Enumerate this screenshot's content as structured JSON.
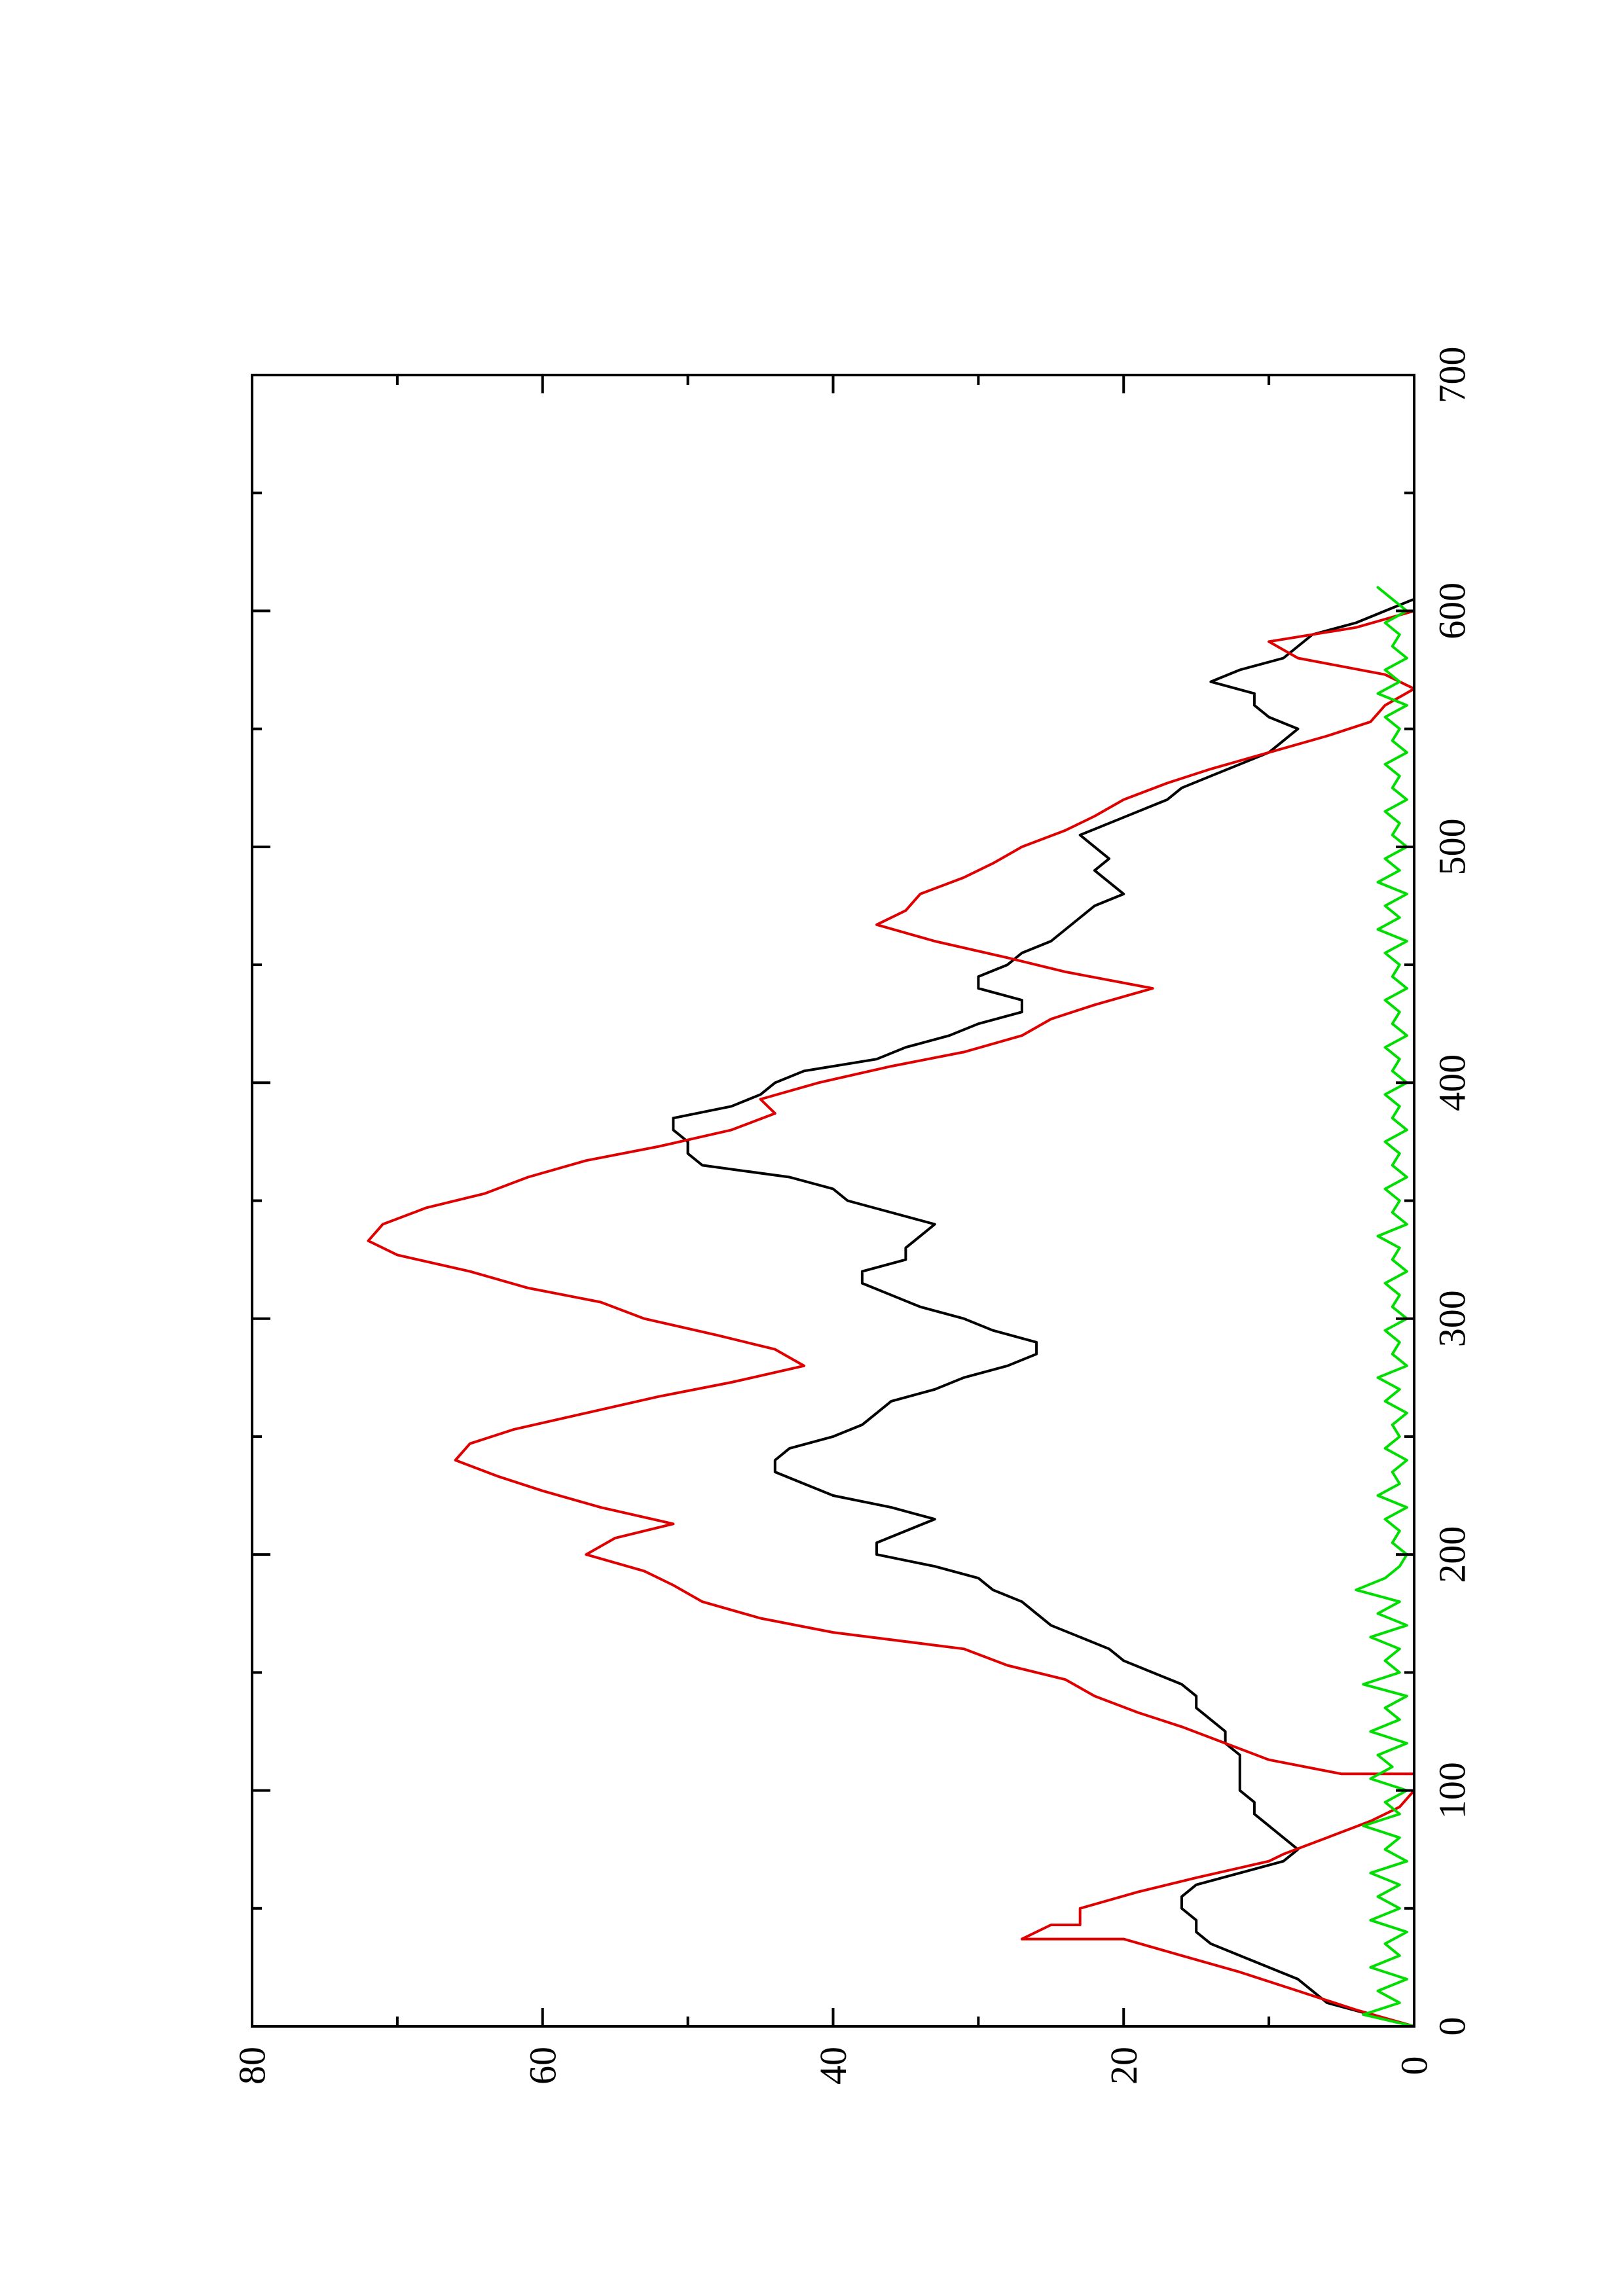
{
  "chart_data": {
    "type": "line",
    "title": "",
    "xlabel": "",
    "ylabel": "",
    "orientation": "rotated-90-counterclockwise",
    "xlim": [
      0,
      700
    ],
    "ylim": [
      0,
      80
    ],
    "x_ticks": [
      "0",
      "100",
      "200",
      "300",
      "400",
      "500",
      "600",
      "700"
    ],
    "y_ticks": [
      "0",
      "20",
      "40",
      "60",
      "80"
    ],
    "grid": false,
    "legend": "none",
    "series": [
      {
        "color": "#000000",
        "x": [
          0,
          5,
          10,
          15,
          20,
          25,
          30,
          35,
          40,
          45,
          50,
          55,
          60,
          65,
          70,
          75,
          80,
          85,
          90,
          95,
          100,
          105,
          110,
          115,
          120,
          125,
          130,
          135,
          140,
          145,
          150,
          155,
          160,
          165,
          170,
          175,
          180,
          185,
          190,
          195,
          200,
          205,
          210,
          215,
          220,
          225,
          230,
          235,
          240,
          245,
          250,
          255,
          260,
          265,
          270,
          275,
          280,
          285,
          290,
          295,
          300,
          305,
          310,
          315,
          320,
          325,
          330,
          335,
          340,
          345,
          350,
          355,
          360,
          365,
          370,
          375,
          380,
          385,
          390,
          395,
          400,
          405,
          410,
          415,
          420,
          425,
          430,
          435,
          440,
          445,
          450,
          455,
          460,
          465,
          470,
          475,
          480,
          485,
          490,
          495,
          500,
          505,
          510,
          515,
          520,
          525,
          530,
          535,
          540,
          545,
          550,
          555,
          560,
          565,
          570,
          575,
          580,
          585,
          590,
          595,
          600,
          605,
          610
        ],
        "values": [
          0,
          3,
          6,
          7,
          8,
          10,
          12,
          14,
          15,
          15,
          16,
          16,
          15,
          12,
          9,
          8,
          9,
          10,
          11,
          11,
          12,
          12,
          12,
          12,
          13,
          13,
          14,
          15,
          15,
          16,
          18,
          20,
          21,
          23,
          25,
          26,
          27,
          29,
          30,
          33,
          37,
          37,
          35,
          33,
          36,
          40,
          42,
          44,
          44,
          43,
          40,
          38,
          37,
          36,
          33,
          31,
          28,
          26,
          26,
          29,
          31,
          34,
          36,
          38,
          38,
          35,
          35,
          34,
          33,
          36,
          39,
          40,
          43,
          49,
          50,
          50,
          51,
          51,
          47,
          45,
          44,
          42,
          37,
          35,
          32,
          30,
          27,
          27,
          30,
          30,
          28,
          27,
          25,
          24,
          23,
          22,
          20,
          21,
          22,
          21,
          22,
          23,
          21,
          19,
          17,
          16,
          14,
          12,
          10,
          9,
          8,
          10,
          11,
          11,
          14,
          12,
          9,
          8,
          7,
          4,
          2,
          0,
          0
        ]
      },
      {
        "color": "#e00000",
        "x": [
          0,
          7,
          15,
          23,
          30,
          37,
          37,
          43,
          43,
          50,
          57,
          63,
          70,
          73,
          80,
          87,
          93,
          100,
          107,
          107,
          113,
          120,
          127,
          133,
          140,
          147,
          153,
          160,
          167,
          173,
          180,
          187,
          193,
          200,
          207,
          213,
          220,
          227,
          233,
          240,
          247,
          253,
          260,
          267,
          273,
          280,
          287,
          293,
          300,
          307,
          313,
          320,
          327,
          333,
          340,
          347,
          353,
          360,
          367,
          373,
          380,
          387,
          393,
          400,
          407,
          413,
          420,
          427,
          433,
          440,
          447,
          453,
          460,
          467,
          473,
          480,
          487,
          493,
          500,
          507,
          513,
          520,
          527,
          533,
          540,
          547,
          553,
          560,
          567,
          573,
          580,
          587,
          593,
          600,
          607
        ],
        "values": [
          0,
          4,
          8,
          12,
          16,
          20,
          27,
          25,
          23,
          23,
          19,
          15,
          10,
          9,
          6,
          3,
          1,
          0,
          0,
          5,
          10,
          13,
          16,
          19,
          22,
          24,
          28,
          31,
          40,
          45,
          49,
          51,
          53,
          57,
          55,
          51,
          56,
          60,
          63,
          66,
          65,
          62,
          57,
          52,
          47,
          42,
          44,
          48,
          53,
          56,
          61,
          65,
          70,
          72,
          71,
          68,
          64,
          61,
          57,
          52,
          47,
          44,
          45,
          41,
          36,
          31,
          27,
          25,
          22,
          18,
          24,
          28,
          33,
          37,
          35,
          34,
          31,
          29,
          27,
          24,
          22,
          20,
          17,
          14,
          10,
          6,
          3,
          2,
          0,
          2,
          8,
          10,
          4,
          0,
          0
        ]
      },
      {
        "color": "#00dd00",
        "x": [
          0,
          5,
          10,
          15,
          20,
          25,
          30,
          35,
          40,
          45,
          50,
          55,
          60,
          65,
          70,
          75,
          80,
          85,
          90,
          95,
          100,
          105,
          110,
          115,
          120,
          125,
          130,
          135,
          140,
          145,
          150,
          155,
          160,
          165,
          170,
          175,
          180,
          185,
          190,
          195,
          200,
          205,
          210,
          215,
          220,
          225,
          230,
          235,
          240,
          245,
          250,
          255,
          260,
          265,
          270,
          275,
          280,
          285,
          290,
          295,
          300,
          305,
          310,
          315,
          320,
          325,
          330,
          335,
          340,
          345,
          350,
          355,
          360,
          365,
          370,
          375,
          380,
          385,
          390,
          395,
          400,
          405,
          410,
          415,
          420,
          425,
          430,
          435,
          440,
          445,
          450,
          455,
          460,
          465,
          470,
          475,
          480,
          485,
          490,
          495,
          500,
          505,
          510,
          515,
          520,
          525,
          530,
          535,
          540,
          545,
          550,
          555,
          560,
          565,
          570,
          575,
          580,
          585,
          590,
          595,
          600,
          605,
          610
        ],
        "values": [
          0,
          3.5,
          1,
          2.5,
          0.5,
          3,
          1,
          2,
          0.5,
          3,
          1,
          2.5,
          1,
          3,
          0.5,
          2,
          1,
          3.5,
          1,
          2,
          0.5,
          3,
          1.5,
          2.5,
          0.5,
          3,
          1,
          2,
          0.5,
          3.5,
          1,
          2,
          1,
          3,
          0.5,
          2.5,
          1,
          4,
          2,
          1,
          0.5,
          1.5,
          1,
          2,
          0.5,
          2.5,
          1,
          1.5,
          0.5,
          2,
          1,
          1.5,
          0.5,
          2,
          1,
          2.5,
          0.5,
          1.5,
          1,
          2,
          0.5,
          1.5,
          1,
          2,
          0.5,
          1.5,
          1,
          2.5,
          0.5,
          1.5,
          1,
          2,
          0.5,
          1.5,
          1,
          2,
          0.5,
          1.5,
          1,
          2,
          0.5,
          1.5,
          1,
          2,
          0.5,
          1.5,
          1,
          2,
          0.5,
          1.5,
          1,
          2,
          0.5,
          2.5,
          1,
          2,
          0.5,
          2.5,
          1,
          2,
          0.5,
          1.5,
          1,
          2,
          0.5,
          1.5,
          1,
          2,
          0.5,
          1.5,
          1,
          2,
          0.5,
          2.5,
          1,
          2,
          0.5,
          1.5,
          1,
          2,
          0.5,
          1.5,
          2.5
        ]
      }
    ]
  }
}
